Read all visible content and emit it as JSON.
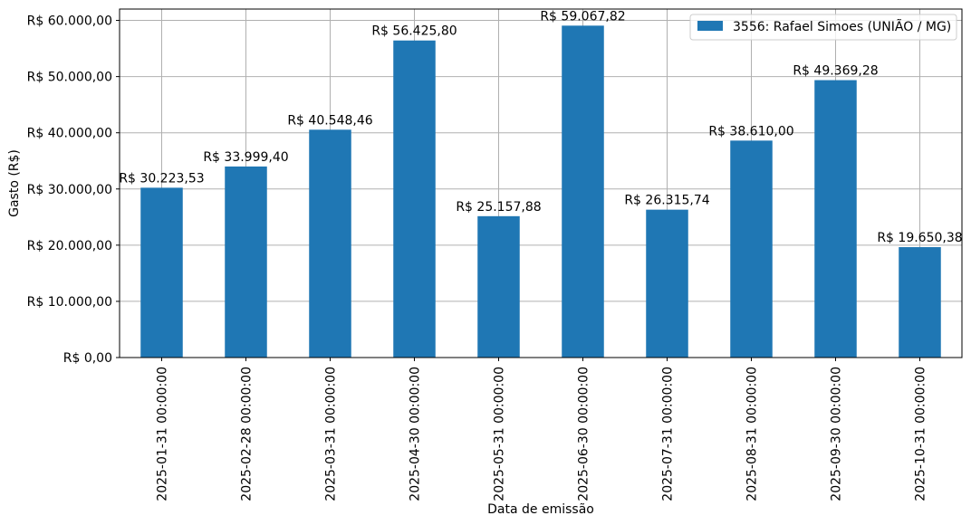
{
  "chart_data": {
    "type": "bar",
    "xlabel": "Data de emissão",
    "ylabel": "Gasto (R$)",
    "categories": [
      "2025-01-31 00:00:00",
      "2025-02-28 00:00:00",
      "2025-03-31 00:00:00",
      "2025-04-30 00:00:00",
      "2025-05-31 00:00:00",
      "2025-06-30 00:00:00",
      "2025-07-31 00:00:00",
      "2025-08-31 00:00:00",
      "2025-09-30 00:00:00",
      "2025-10-31 00:00:00"
    ],
    "series": [
      {
        "name": "3556: Rafael Simoes (UNIÃO / MG)",
        "color": "#1f77b4",
        "values": [
          30223.53,
          33999.4,
          40548.46,
          56425.8,
          25157.88,
          59067.82,
          26315.74,
          38610.0,
          49369.28,
          19650.38
        ]
      }
    ],
    "data_labels": [
      "R$ 30.223,53",
      "R$ 33.999,40",
      "R$ 40.548,46",
      "R$ 56.425,80",
      "R$ 25.157,88",
      "R$ 59.067,82",
      "R$ 26.315,74",
      "R$ 38.610,00",
      "R$ 49.369,28",
      "R$ 19.650,38"
    ],
    "yticks": [
      0,
      10000,
      20000,
      30000,
      40000,
      50000,
      60000
    ],
    "ytick_labels": [
      "R$ 0,00",
      "R$ 10.000,00",
      "R$ 20.000,00",
      "R$ 30.000,00",
      "R$ 40.000,00",
      "R$ 50.000,00",
      "R$ 60.000,00"
    ],
    "ylim": [
      0,
      62020
    ],
    "grid": true,
    "legend_position": "top-right"
  }
}
